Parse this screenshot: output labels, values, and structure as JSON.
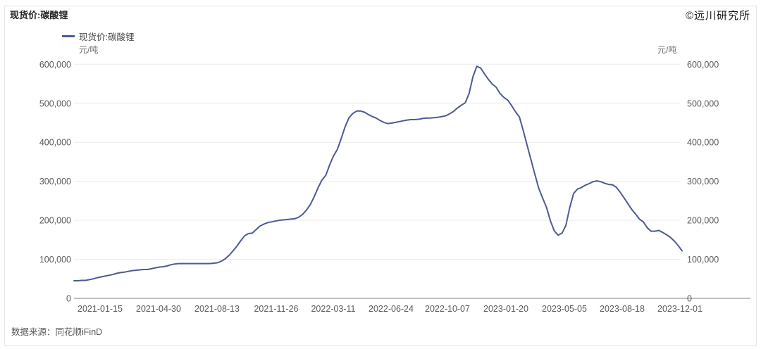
{
  "header": {
    "title": "现货价:碳酸锂",
    "watermark": "©远川研究所"
  },
  "legend": {
    "label": "现货价:碳酸锂"
  },
  "axes": {
    "unit_left": "元/吨",
    "unit_right": "元/吨",
    "y_tick_labels": [
      "0",
      "100,000",
      "200,000",
      "300,000",
      "400,000",
      "500,000",
      "600,000"
    ],
    "x_tick_labels": [
      "2021-01-15",
      "2021-04-30",
      "2021-08-13",
      "2021-11-26",
      "2022-03-11",
      "2022-06-24",
      "2022-10-07",
      "2023-01-20",
      "2023-05-05",
      "2023-08-18",
      "2023-12-01"
    ]
  },
  "footer": {
    "source": "数据来源：同花顺iFinD"
  },
  "colors": {
    "line": "#4e5a94",
    "grid": "#ececef",
    "axis": "#9b9b9b",
    "tick_text": "#595959"
  },
  "chart_data": {
    "type": "line",
    "title": "现货价:碳酸锂",
    "ylabel": "元/吨",
    "ylim": [
      0,
      600000
    ],
    "y_tick_step": 100000,
    "grid": "horizontal",
    "legend_position": "top-left",
    "x_tick_labels": [
      "2021-01-15",
      "2021-04-30",
      "2021-08-13",
      "2021-11-26",
      "2022-03-11",
      "2022-06-24",
      "2022-10-07",
      "2023-01-20",
      "2023-05-05",
      "2023-08-18",
      "2023-12-01"
    ],
    "series": [
      {
        "name": "现货价:碳酸锂",
        "unit": "元/吨",
        "start_date": "2020-11-27",
        "interval_days": 7,
        "values": [
          45000,
          45000,
          46000,
          46000,
          48000,
          50000,
          53000,
          55000,
          57000,
          59000,
          61000,
          64000,
          66000,
          67000,
          69000,
          71000,
          72000,
          73000,
          74000,
          74000,
          76000,
          78000,
          80000,
          81000,
          83000,
          86000,
          88000,
          89000,
          89000,
          89000,
          89000,
          89000,
          89000,
          89000,
          89000,
          89000,
          90000,
          91000,
          95000,
          101000,
          110000,
          121000,
          133000,
          147000,
          160000,
          166000,
          167000,
          176000,
          185000,
          190000,
          194000,
          196000,
          198000,
          200000,
          201000,
          202000,
          203000,
          204000,
          208000,
          215000,
          226000,
          240000,
          260000,
          283000,
          303000,
          315000,
          342000,
          365000,
          382000,
          410000,
          440000,
          463000,
          474000,
          480000,
          480000,
          477000,
          471000,
          466000,
          462000,
          456000,
          451000,
          448000,
          449000,
          451000,
          453000,
          455000,
          457000,
          458000,
          458000,
          459000,
          461000,
          462000,
          462000,
          463000,
          464000,
          466000,
          468000,
          473000,
          479000,
          488000,
          495000,
          501000,
          525000,
          568000,
          595000,
          590000,
          575000,
          561000,
          549000,
          541000,
          525000,
          515000,
          508000,
          494000,
          478000,
          465000,
          430000,
          392000,
          355000,
          318000,
          282000,
          257000,
          233000,
          199000,
          173000,
          162000,
          167000,
          187000,
          233000,
          269000,
          280000,
          284000,
          290000,
          294000,
          299000,
          301000,
          299000,
          295000,
          292000,
          291000,
          285000,
          272000,
          258000,
          243000,
          228000,
          216000,
          203000,
          196000,
          181000,
          172000,
          172000,
          174000,
          169000,
          163000,
          156000,
          147000,
          135000,
          122000
        ]
      }
    ]
  }
}
